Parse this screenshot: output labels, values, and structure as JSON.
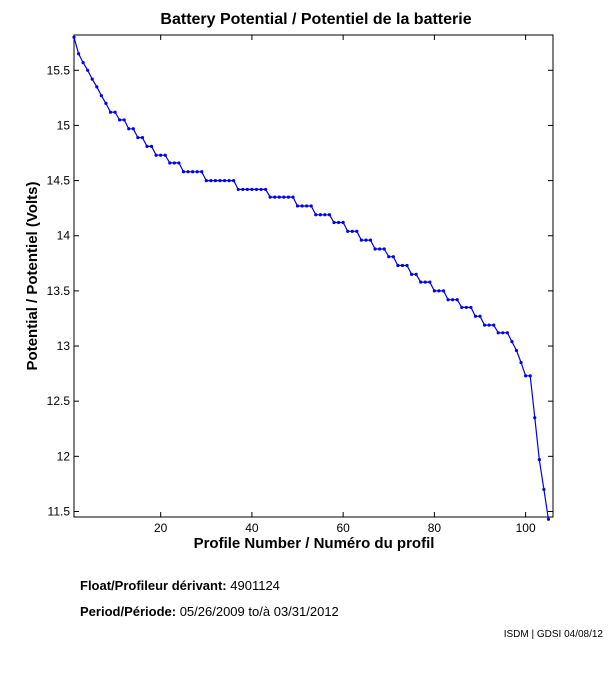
{
  "chart_data": {
    "type": "line",
    "title": "Battery Potential / Potentiel de la batterie",
    "xlabel": "Profile Number / Numéro du profil",
    "ylabel": "Potential / Potentiel (Volts)",
    "xlim": [
      1,
      106
    ],
    "ylim": [
      11.45,
      15.82
    ],
    "xticks": [
      20,
      40,
      60,
      80,
      100
    ],
    "yticks": [
      11.5,
      12,
      12.5,
      13,
      13.5,
      14,
      14.5,
      15,
      15.5
    ],
    "grid": false,
    "legend": "none",
    "line_color": "#0000ee",
    "series": [
      {
        "x": [
          1,
          2,
          3,
          4,
          5,
          6,
          7,
          8,
          9,
          10,
          11,
          12,
          13,
          14,
          15,
          16,
          17,
          18,
          19,
          20,
          21,
          22,
          23,
          24,
          25,
          26,
          27,
          28,
          29,
          30,
          31,
          32,
          33,
          34,
          35,
          36,
          37,
          38,
          39,
          40,
          41,
          42,
          43,
          44,
          45,
          46,
          47,
          48,
          49,
          50,
          51,
          52,
          53,
          54,
          55,
          56,
          57,
          58,
          59,
          60,
          61,
          62,
          63,
          64,
          65,
          66,
          67,
          68,
          69,
          70,
          71,
          72,
          73,
          74,
          75,
          76,
          77,
          78,
          79,
          80,
          81,
          82,
          83,
          84,
          85,
          86,
          87,
          88,
          89,
          90,
          91,
          92,
          93,
          94,
          95,
          96,
          97,
          98,
          99,
          100,
          101,
          102,
          103,
          104,
          105
        ],
        "y": [
          15.8,
          15.65,
          15.57,
          15.5,
          15.42,
          15.35,
          15.27,
          15.2,
          15.12,
          15.12,
          15.05,
          15.05,
          14.97,
          14.97,
          14.89,
          14.89,
          14.81,
          14.81,
          14.73,
          14.73,
          14.73,
          14.66,
          14.66,
          14.66,
          14.58,
          14.58,
          14.58,
          14.58,
          14.58,
          14.5,
          14.5,
          14.5,
          14.5,
          14.5,
          14.5,
          14.5,
          14.42,
          14.42,
          14.42,
          14.42,
          14.42,
          14.42,
          14.42,
          14.35,
          14.35,
          14.35,
          14.35,
          14.35,
          14.35,
          14.27,
          14.27,
          14.27,
          14.27,
          14.19,
          14.19,
          14.19,
          14.19,
          14.12,
          14.12,
          14.12,
          14.04,
          14.04,
          14.04,
          13.96,
          13.96,
          13.96,
          13.88,
          13.88,
          13.88,
          13.81,
          13.81,
          13.73,
          13.73,
          13.73,
          13.65,
          13.65,
          13.58,
          13.58,
          13.58,
          13.5,
          13.5,
          13.5,
          13.42,
          13.42,
          13.42,
          13.35,
          13.35,
          13.35,
          13.27,
          13.27,
          13.19,
          13.19,
          13.19,
          13.12,
          13.12,
          13.12,
          13.04,
          12.96,
          12.85,
          12.73,
          12.73,
          12.35,
          11.97,
          11.7,
          11.43
        ]
      }
    ]
  },
  "info": {
    "float_label": "Float/Profileur dérivant:",
    "float_value": "4901124",
    "period_label": "Period/Période:",
    "period_start": "05/26/2009",
    "period_sep": "to/à",
    "period_end": "03/31/2012",
    "credit": "ISDM | GDSI 04/08/12"
  }
}
